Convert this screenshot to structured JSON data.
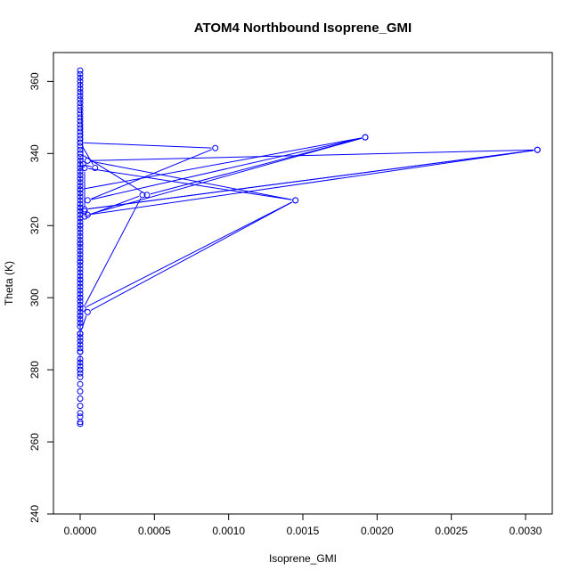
{
  "chart_data": {
    "type": "line",
    "title": "ATOM4 Northbound Isoprene_GMI",
    "xlabel": "Isoprene_GMI",
    "ylabel": "Theta (K)",
    "xlim": [
      -0.00018,
      0.00318
    ],
    "ylim": [
      240,
      368
    ],
    "x_ticks": [
      0.0,
      0.0005,
      0.001,
      0.0015,
      0.002,
      0.0025,
      0.003
    ],
    "x_tick_labels": [
      "0.0000",
      "0.0005",
      "0.0010",
      "0.0015",
      "0.0020",
      "0.0025",
      "0.0030"
    ],
    "y_ticks": [
      240,
      260,
      280,
      300,
      320,
      340,
      360
    ],
    "y_tick_labels": [
      "240",
      "260",
      "280",
      "300",
      "320",
      "340",
      "360"
    ],
    "grid": false,
    "series_color": "#0000ff",
    "series": [
      {
        "x": [
          0,
          0,
          0,
          0,
          0,
          0,
          0,
          0,
          0,
          0,
          0,
          0,
          0,
          0,
          0,
          0,
          0,
          0,
          0,
          0,
          0,
          0,
          0,
          0,
          0,
          0,
          0,
          0,
          0,
          0,
          0,
          0,
          0,
          0,
          0,
          0,
          0,
          0,
          0,
          0,
          0,
          0,
          0,
          0,
          0,
          0,
          0,
          0,
          0,
          0,
          0,
          0,
          0,
          0,
          0,
          0,
          0,
          0,
          0,
          0,
          0,
          0,
          0,
          0,
          0,
          0,
          0,
          0,
          0,
          0,
          0,
          0,
          0,
          0,
          0,
          0,
          0,
          0,
          0,
          0,
          0,
          0,
          0,
          0,
          0,
          0,
          0,
          0,
          0,
          0,
          0,
          0,
          2e-05,
          0.0001,
          0,
          0.00091,
          5e-05,
          0.00192,
          5e-05,
          0.00308,
          3e-05,
          0.00308,
          5e-05,
          0.00145,
          3e-05,
          3e-05,
          3e-05,
          0.00042,
          2e-05,
          0.00145,
          5e-05,
          0,
          0,
          0,
          0.00045,
          0.00192,
          0,
          0,
          0,
          0,
          0,
          0,
          0,
          0,
          0,
          0,
          0
        ],
        "y": [
          265,
          265.5,
          267,
          268,
          270,
          272,
          274,
          276,
          278,
          279,
          280,
          281,
          282,
          283,
          285,
          286,
          287,
          288,
          289,
          290,
          292,
          293,
          294,
          295,
          296,
          297,
          298,
          299,
          300,
          301,
          302,
          303,
          304,
          305,
          306,
          307,
          308,
          309,
          310,
          311,
          312,
          313,
          314,
          315,
          316,
          317,
          318,
          319,
          320,
          321,
          322,
          323,
          324,
          325,
          326,
          327,
          328,
          329,
          330,
          331,
          332,
          333,
          334,
          335,
          336,
          337,
          338,
          339,
          340,
          341,
          342,
          343,
          344,
          345,
          346,
          347,
          348,
          349,
          350,
          351,
          352,
          353,
          354,
          355,
          356,
          357,
          358,
          359,
          360,
          361,
          362,
          363,
          337,
          336,
          343,
          341.5,
          327,
          344.5,
          323,
          341,
          324.5,
          341,
          338,
          327,
          336,
          324,
          322.5,
          328.5,
          297,
          327,
          296,
          290,
          285,
          340,
          328.5,
          344.5,
          330,
          325,
          320,
          315,
          310,
          305,
          300,
          295,
          290,
          285,
          280
        ]
      }
    ]
  }
}
